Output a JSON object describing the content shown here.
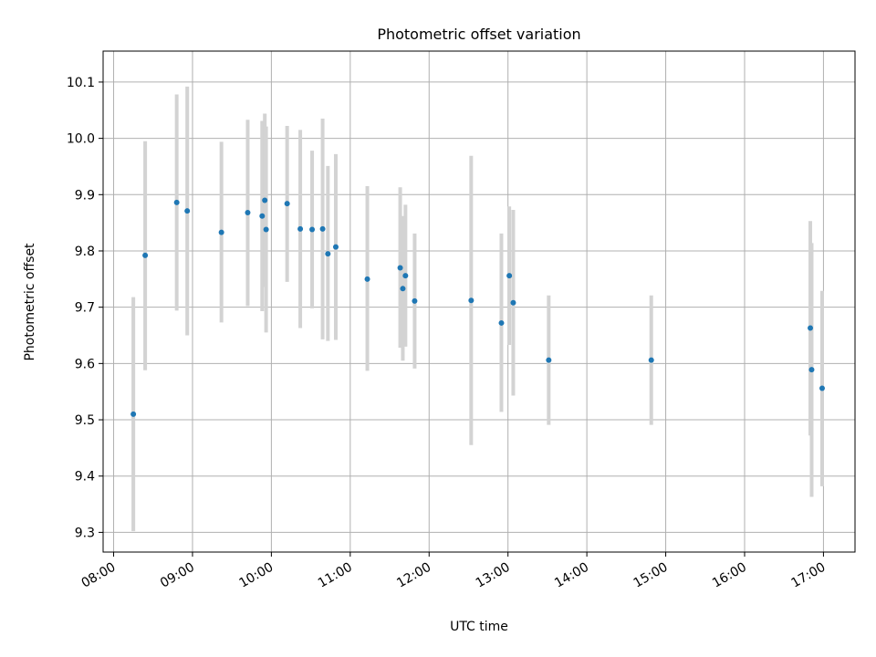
{
  "chart_data": {
    "type": "scatter",
    "title": "Photometric offset variation",
    "xlabel": "UTC time",
    "ylabel": "Photometric offset",
    "x_tick_labels": [
      "08:00",
      "09:00",
      "10:00",
      "11:00",
      "12:00",
      "13:00",
      "14:00",
      "15:00",
      "16:00",
      "17:00"
    ],
    "y_tick_labels": [
      "9.3",
      "9.4",
      "9.5",
      "9.6",
      "9.7",
      "9.8",
      "9.9",
      "10.0",
      "10.1"
    ],
    "xlim": [
      "07:52",
      "17:24"
    ],
    "ylim": [
      9.265,
      10.155
    ],
    "grid": true,
    "marker_color": "#1f77b4",
    "errorbar_color": "#d3d3d3",
    "series": [
      {
        "points": [
          {
            "x": "08:15",
            "y": 9.51,
            "ylow": 9.302,
            "yhigh": 9.718
          },
          {
            "x": "08:24",
            "y": 9.792,
            "ylow": 9.588,
            "yhigh": 9.995
          },
          {
            "x": "08:48",
            "y": 9.886,
            "ylow": 9.694,
            "yhigh": 10.078
          },
          {
            "x": "08:56",
            "y": 9.871,
            "ylow": 9.65,
            "yhigh": 10.092
          },
          {
            "x": "09:22",
            "y": 9.833,
            "ylow": 9.673,
            "yhigh": 9.994
          },
          {
            "x": "09:42",
            "y": 9.868,
            "ylow": 9.702,
            "yhigh": 10.033
          },
          {
            "x": "09:53",
            "y": 9.862,
            "ylow": 9.693,
            "yhigh": 10.031
          },
          {
            "x": "09:55",
            "y": 9.89,
            "ylow": 9.736,
            "yhigh": 10.044
          },
          {
            "x": "09:56",
            "y": 9.838,
            "ylow": 9.655,
            "yhigh": 10.021
          },
          {
            "x": "10:12",
            "y": 9.884,
            "ylow": 9.745,
            "yhigh": 10.022
          },
          {
            "x": "10:22",
            "y": 9.839,
            "ylow": 9.663,
            "yhigh": 10.015
          },
          {
            "x": "10:31",
            "y": 9.838,
            "ylow": 9.698,
            "yhigh": 9.978
          },
          {
            "x": "10:39",
            "y": 9.839,
            "ylow": 9.643,
            "yhigh": 10.035
          },
          {
            "x": "10:43",
            "y": 9.795,
            "ylow": 9.64,
            "yhigh": 9.951
          },
          {
            "x": "10:49",
            "y": 9.807,
            "ylow": 9.642,
            "yhigh": 9.972
          },
          {
            "x": "11:13",
            "y": 9.75,
            "ylow": 9.587,
            "yhigh": 9.915
          },
          {
            "x": "11:38",
            "y": 9.77,
            "ylow": 9.628,
            "yhigh": 9.913
          },
          {
            "x": "11:40",
            "y": 9.733,
            "ylow": 9.605,
            "yhigh": 9.862
          },
          {
            "x": "11:42",
            "y": 9.756,
            "ylow": 9.63,
            "yhigh": 9.882
          },
          {
            "x": "11:49",
            "y": 9.711,
            "ylow": 9.591,
            "yhigh": 9.831
          },
          {
            "x": "12:32",
            "y": 9.712,
            "ylow": 9.455,
            "yhigh": 9.969
          },
          {
            "x": "12:55",
            "y": 9.672,
            "ylow": 9.514,
            "yhigh": 9.831
          },
          {
            "x": "13:01",
            "y": 9.756,
            "ylow": 9.633,
            "yhigh": 9.879
          },
          {
            "x": "13:04",
            "y": 9.708,
            "ylow": 9.543,
            "yhigh": 9.873
          },
          {
            "x": "13:31",
            "y": 9.606,
            "ylow": 9.491,
            "yhigh": 9.721
          },
          {
            "x": "14:49",
            "y": 9.606,
            "ylow": 9.491,
            "yhigh": 9.721
          },
          {
            "x": "16:50",
            "y": 9.663,
            "ylow": 9.472,
            "yhigh": 9.853
          },
          {
            "x": "16:51",
            "y": 9.589,
            "ylow": 9.363,
            "yhigh": 9.814
          },
          {
            "x": "16:59",
            "y": 9.556,
            "ylow": 9.382,
            "yhigh": 9.729
          }
        ]
      }
    ]
  }
}
